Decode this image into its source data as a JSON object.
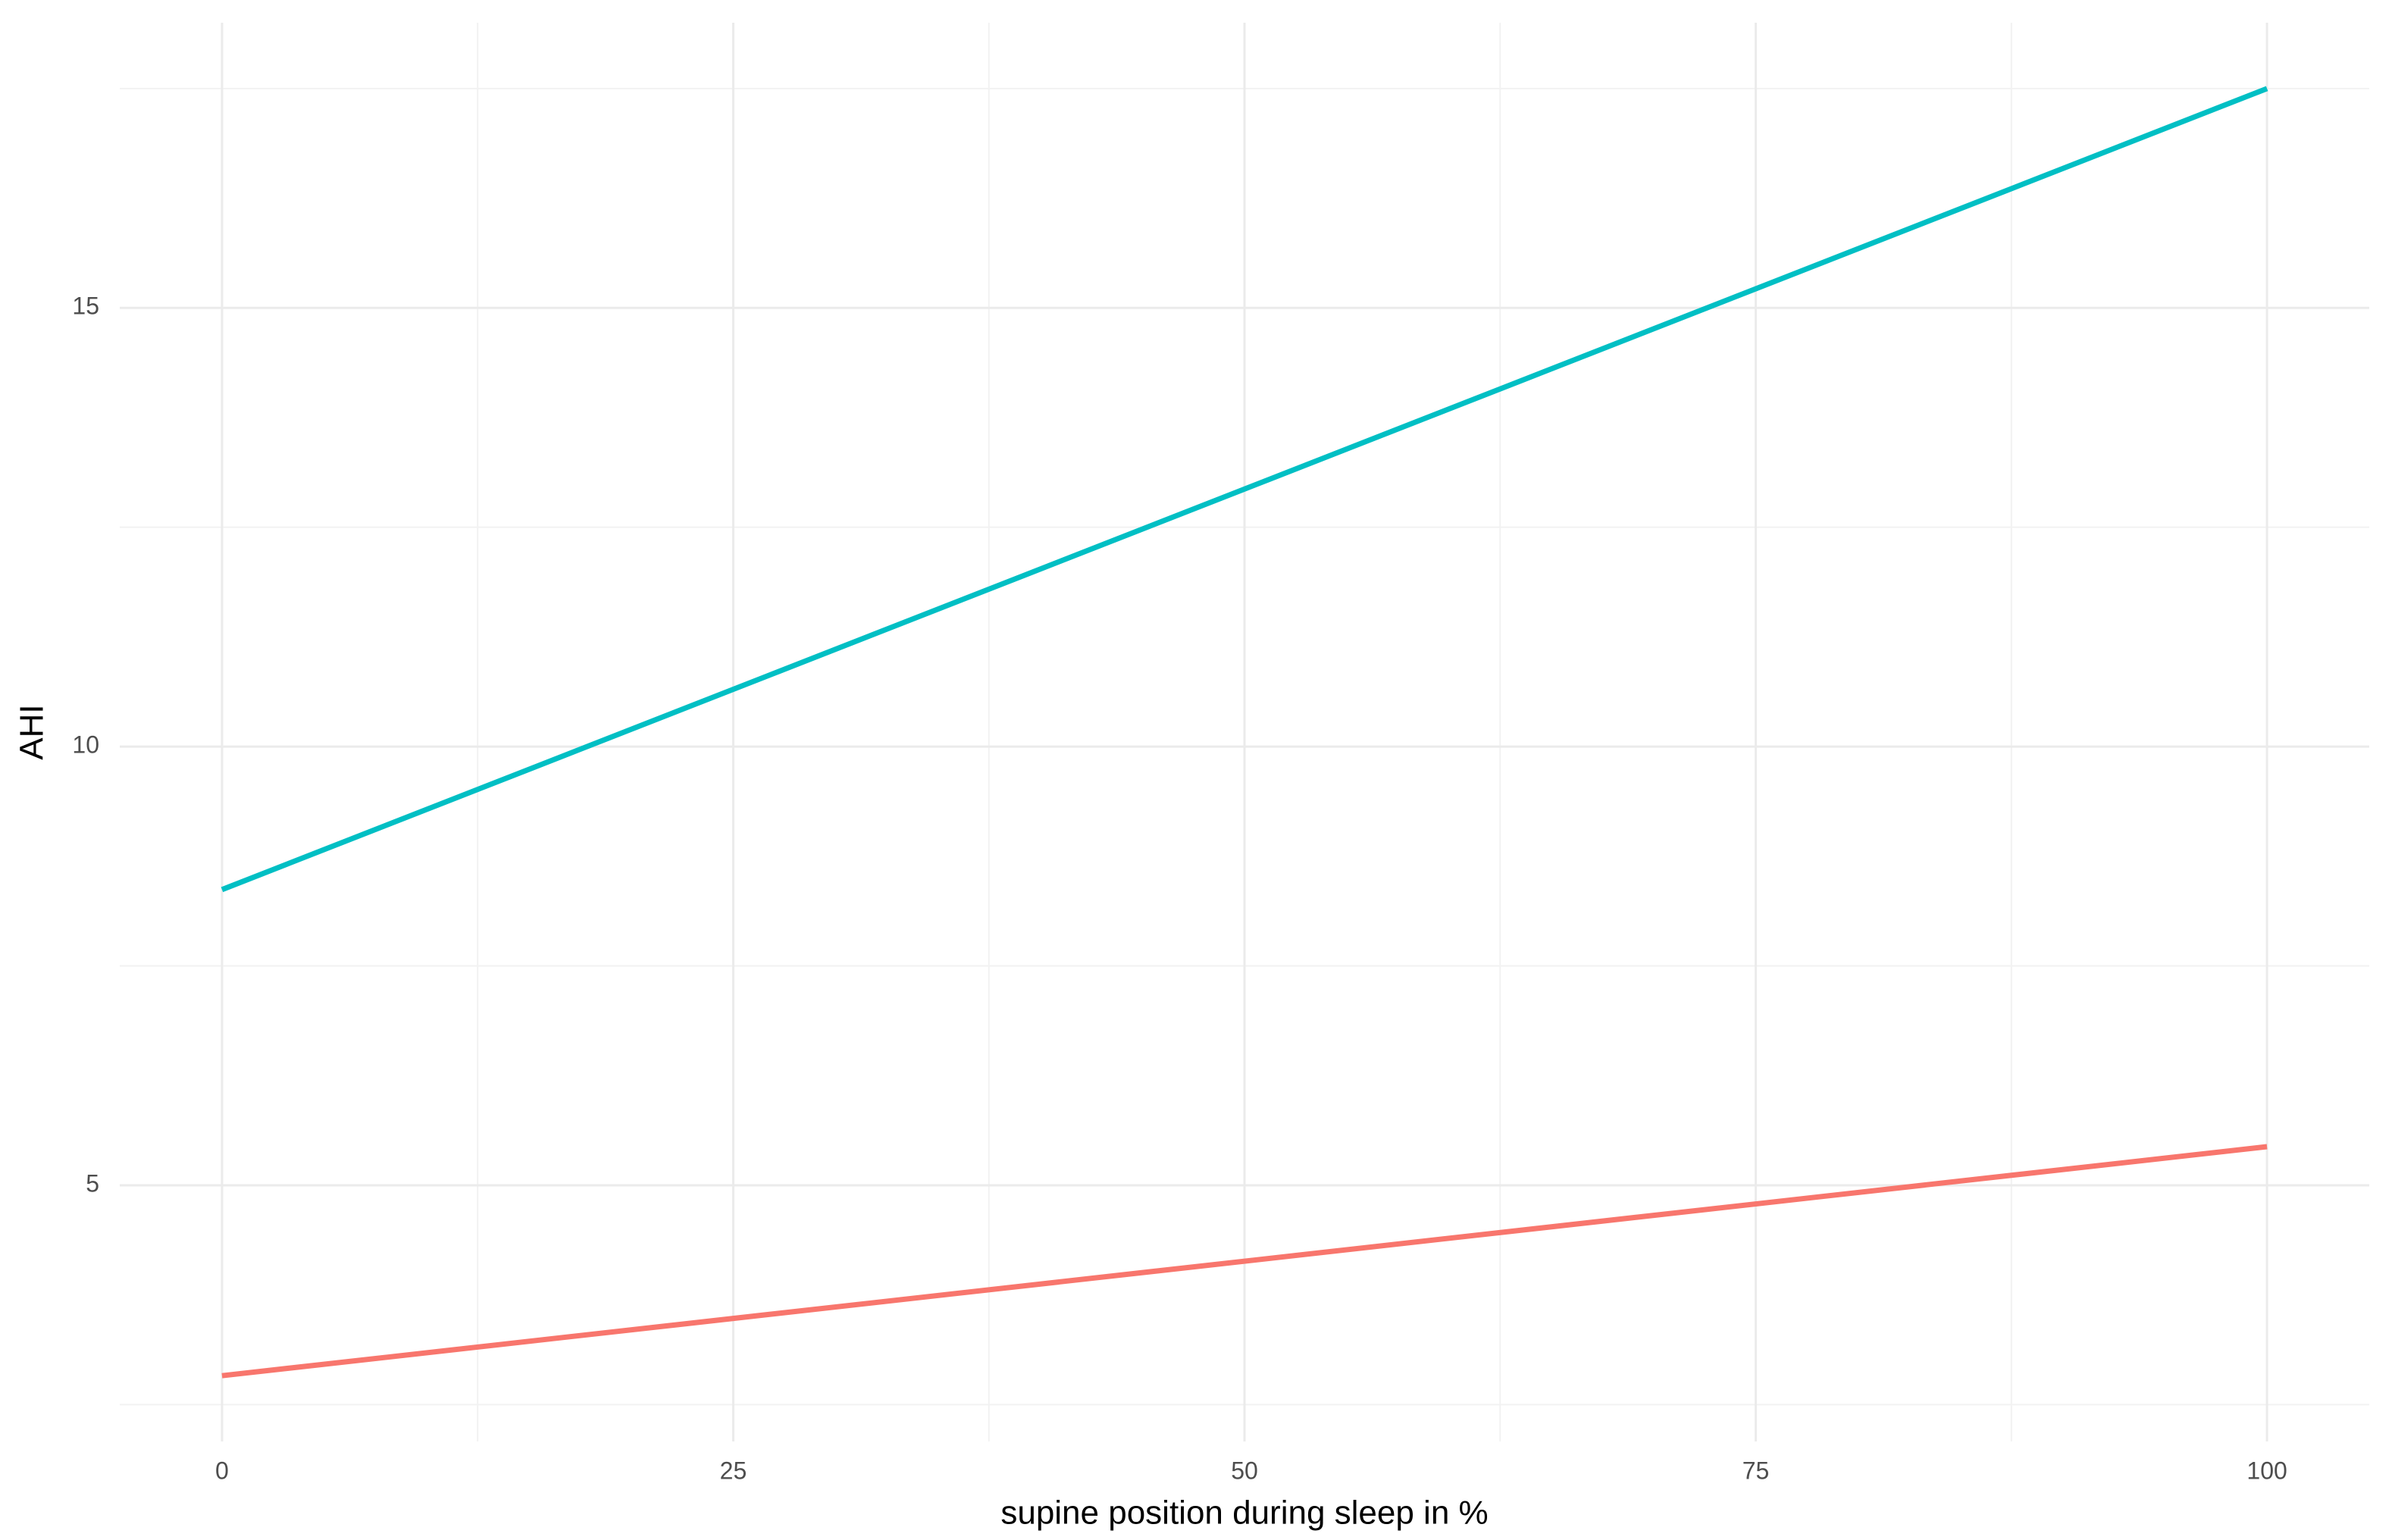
{
  "chart_data": {
    "type": "line",
    "x_label": "supine position during sleep in %",
    "y_label": "AHI",
    "x": [
      0,
      100
    ],
    "series": [
      {
        "color": "#00BFC4",
        "values": [
          8.37,
          17.5
        ]
      },
      {
        "color": "#F8766D",
        "values": [
          2.83,
          5.44
        ]
      }
    ],
    "xlim": [
      -5,
      105
    ],
    "xticks": [
      0,
      25,
      50,
      75,
      100
    ],
    "xminor_ticks": [
      12.5,
      37.5,
      62.5,
      87.5
    ],
    "ylim": [
      2.08,
      18.25
    ],
    "yticks": [
      5,
      10,
      15
    ],
    "yminor_ticks": [
      2.5,
      7.5,
      12.5,
      17.5
    ],
    "grid": true
  }
}
